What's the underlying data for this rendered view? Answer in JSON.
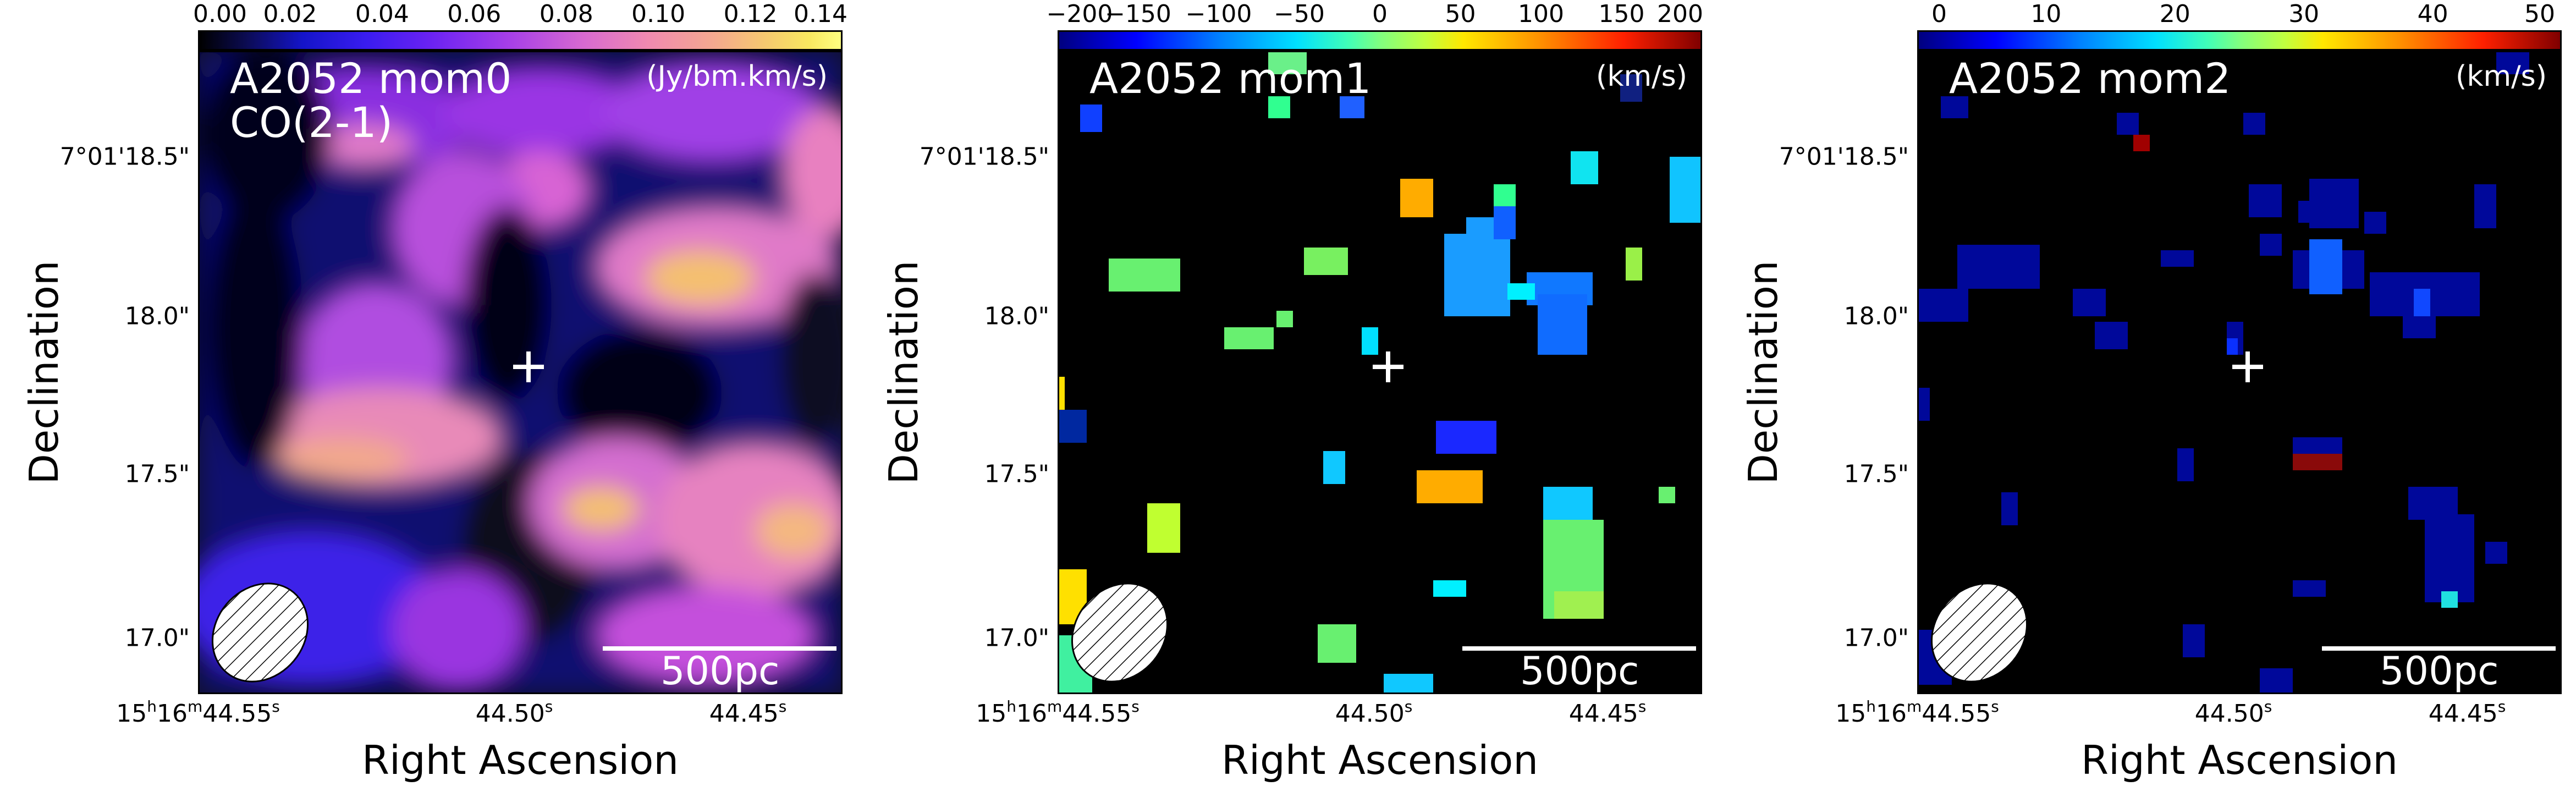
{
  "panels": [
    {
      "id": "mom0",
      "map_name": "A2052 mom0",
      "line": "CO(2-1)",
      "units": "(Jy/bm.km/s)",
      "colormap": "magma-like",
      "colorbar_ticks": [
        "0.00",
        "0.02",
        "0.04",
        "0.06",
        "0.08",
        "0.10",
        "0.12",
        "0.14"
      ],
      "colorbar_range": [
        0.0,
        0.14
      ],
      "scalebar_label": "500pc",
      "ylabel": "Declination",
      "xlabel": "Right Ascension",
      "yticks": [
        "7°01'18.5\"",
        "18.0\"",
        "17.5\"",
        "17.0\""
      ],
      "xticks": {
        "first_h": "15",
        "first_m": "16",
        "first_s": "44.55",
        "t2": "44.50",
        "t3": "44.45"
      }
    },
    {
      "id": "mom1",
      "map_name": "A2052 mom1",
      "line": "",
      "units": "(km/s)",
      "colormap": "jet",
      "colorbar_ticks": [
        "−200",
        "−150",
        "−100",
        "−50",
        "0",
        "50",
        "100",
        "150",
        "200"
      ],
      "colorbar_range": [
        -200,
        200
      ],
      "scalebar_label": "500pc",
      "ylabel": "Declination",
      "xlabel": "Right Ascension",
      "yticks": [
        "7°01'18.5\"",
        "18.0\"",
        "17.5\"",
        "17.0\""
      ],
      "xticks": {
        "first_h": "15",
        "first_m": "16",
        "first_s": "44.55",
        "t2": "44.50",
        "t3": "44.45"
      }
    },
    {
      "id": "mom2",
      "map_name": "A2052 mom2",
      "line": "",
      "units": "(km/s)",
      "colormap": "jet",
      "colorbar_ticks": [
        "0",
        "10",
        "20",
        "30",
        "40",
        "50"
      ],
      "colorbar_range": [
        0,
        50
      ],
      "scalebar_label": "500pc",
      "ylabel": "Declination",
      "xlabel": "Right Ascension",
      "yticks": [
        "7°01'18.5\"",
        "18.0\"",
        "17.5\"",
        "17.0\""
      ],
      "xticks": {
        "first_h": "15",
        "first_m": "16",
        "first_s": "44.55",
        "t2": "44.50",
        "t3": "44.45"
      }
    }
  ],
  "colors": {
    "background": "#000000",
    "overlay": "#ffffff"
  }
}
